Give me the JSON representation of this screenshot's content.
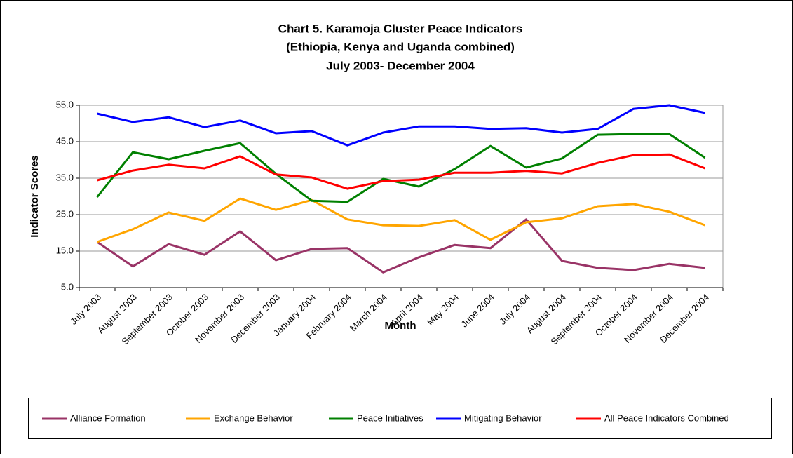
{
  "chart_data": {
    "type": "line",
    "title": [
      "Chart 5. Karamoja Cluster Peace Indicators",
      "(Ethiopia, Kenya and Uganda combined)",
      "July 2003- December 2004"
    ],
    "x_label": "Month",
    "y_label": "Indicator Scores",
    "categories": [
      "July 2003",
      "August 2003",
      "September 2003",
      "October 2003",
      "November 2003",
      "December 2003",
      "January 2004",
      "February 2004",
      "March 2004",
      "April 2004",
      "May 2004",
      "June 2004",
      "July 2004",
      "August 2004",
      "September 2004",
      "October 2004",
      "November 2004",
      "December 2004"
    ],
    "series": [
      {
        "name": "Alliance Formation",
        "color": "#993366",
        "values": [
          17.5,
          10.8,
          16.9,
          14.0,
          20.4,
          12.5,
          15.6,
          15.8,
          9.2,
          13.3,
          16.7,
          15.8,
          23.7,
          12.3,
          10.4,
          9.8,
          11.5,
          10.4
        ]
      },
      {
        "name": "Exchange Behavior",
        "color": "#ffa500",
        "values": [
          17.5,
          21.0,
          25.6,
          23.3,
          29.4,
          26.3,
          29.0,
          23.7,
          22.1,
          21.9,
          23.5,
          18.1,
          22.9,
          24.0,
          27.3,
          27.9,
          25.8,
          22.1
        ]
      },
      {
        "name": "Peace Initiatives",
        "color": "#008000",
        "values": [
          29.8,
          42.1,
          40.2,
          42.5,
          44.6,
          36.2,
          28.8,
          28.5,
          34.8,
          32.7,
          37.5,
          43.8,
          37.9,
          40.4,
          46.9,
          47.1,
          47.1,
          40.6
        ]
      },
      {
        "name": "Mitigating Behavior",
        "color": "#0000ff",
        "values": [
          52.7,
          50.4,
          51.7,
          49.0,
          50.8,
          47.3,
          47.9,
          44.0,
          47.5,
          49.2,
          49.2,
          48.5,
          48.7,
          47.5,
          48.5,
          54.0,
          55.0,
          52.9
        ]
      },
      {
        "name": "All Peace Indicators Combined",
        "color": "#ff0000",
        "values": [
          34.4,
          37.1,
          38.7,
          37.7,
          41.0,
          36.0,
          35.2,
          32.1,
          34.2,
          34.6,
          36.5,
          36.5,
          37.0,
          36.3,
          39.2,
          41.3,
          41.5,
          37.7
        ]
      }
    ],
    "ylim": [
      5,
      55
    ],
    "yticks": [
      {
        "value": 5,
        "label": "5.0"
      },
      {
        "value": 15,
        "label": "15.0"
      },
      {
        "value": 25,
        "label": "25.0"
      },
      {
        "value": 35,
        "label": "35.0"
      },
      {
        "value": 45,
        "label": "45.0"
      },
      {
        "value": 55,
        "label": "55.0"
      }
    ],
    "grid": true,
    "legend": "bottom"
  }
}
